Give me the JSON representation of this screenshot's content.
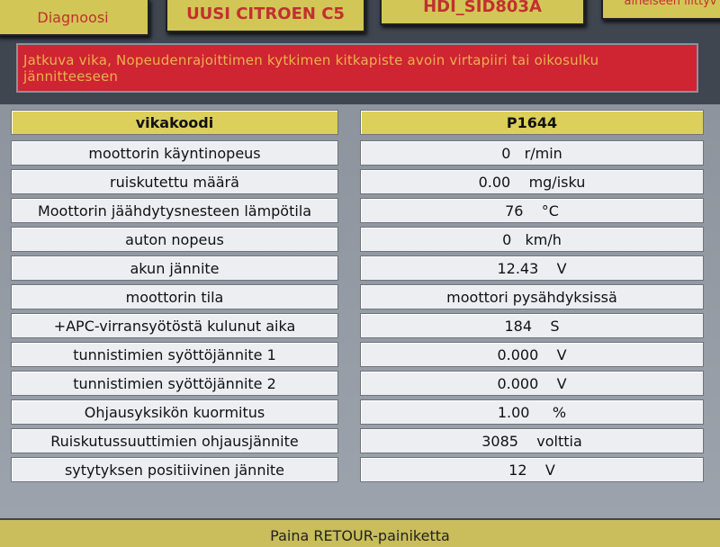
{
  "tabs": [
    "Diagnoosi",
    "UUSI CITROEN C5",
    "HDI_SID803A",
    "aineiseen liittyv"
  ],
  "fault_message": "Jatkuva vika, Nopeudenrajoittimen kytkimen kitkapiste avoin virtapiiri tai oikosulku jännitteeseen",
  "header": {
    "label": "vikakoodi",
    "value": "P1644"
  },
  "rows": [
    {
      "label": "moottorin käyntinopeus",
      "value": "0   r/min"
    },
    {
      "label": "ruiskutettu määrä",
      "value": "0.00    mg/isku"
    },
    {
      "label": "Moottorin jäähdytysnesteen lämpötila",
      "value": "76    °C"
    },
    {
      "label": "auton nopeus",
      "value": "0   km/h"
    },
    {
      "label": "akun jännite",
      "value": "12.43    V"
    },
    {
      "label": "moottorin tila",
      "value": "moottori pysähdyksissä"
    },
    {
      "label": "+APC-virransyötöstä kulunut aika",
      "value": "184    S"
    },
    {
      "label": "tunnistimien syöttöjännite 1",
      "value": "0.000    V"
    },
    {
      "label": "tunnistimien syöttöjännite 2",
      "value": "0.000    V"
    },
    {
      "label": "Ohjausyksikön kuormitus",
      "value": "1.00     %"
    },
    {
      "label": "Ruiskutussuuttimien ohjausjännite",
      "value": "3085    volttia"
    },
    {
      "label": "sytytyksen positiivinen jännite",
      "value": "12    V"
    }
  ],
  "footer": "Paina RETOUR-painiketta"
}
